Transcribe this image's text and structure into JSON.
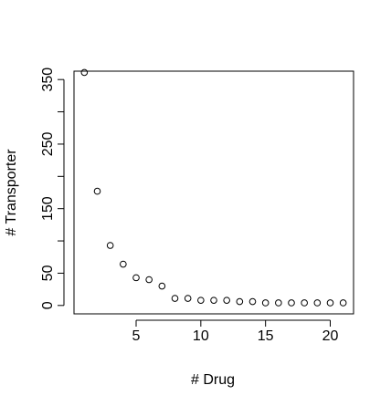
{
  "chart_data": {
    "type": "scatter",
    "title": "",
    "xlabel": "# Drug",
    "ylabel": "# Transporter",
    "xlim": [
      0.2,
      21.8
    ],
    "ylim": [
      -13,
      363
    ],
    "x_ticks": [
      5,
      10,
      15,
      20
    ],
    "y_ticks": [
      0,
      50,
      150,
      250,
      350
    ],
    "y_minor_ticks": [
      100,
      200,
      300
    ],
    "grid": false,
    "legend": "none",
    "marker": "open-circle",
    "series": [
      {
        "x": [
          1,
          2,
          3,
          4,
          5,
          6,
          7,
          8,
          9,
          10,
          11,
          12,
          13,
          14,
          15,
          16,
          17,
          18,
          19,
          20,
          21
        ],
        "y": [
          361,
          177,
          93,
          64,
          43,
          40,
          30,
          11,
          11,
          8,
          8,
          8,
          6,
          6,
          4,
          4,
          4,
          4,
          4,
          4,
          4
        ]
      }
    ]
  }
}
